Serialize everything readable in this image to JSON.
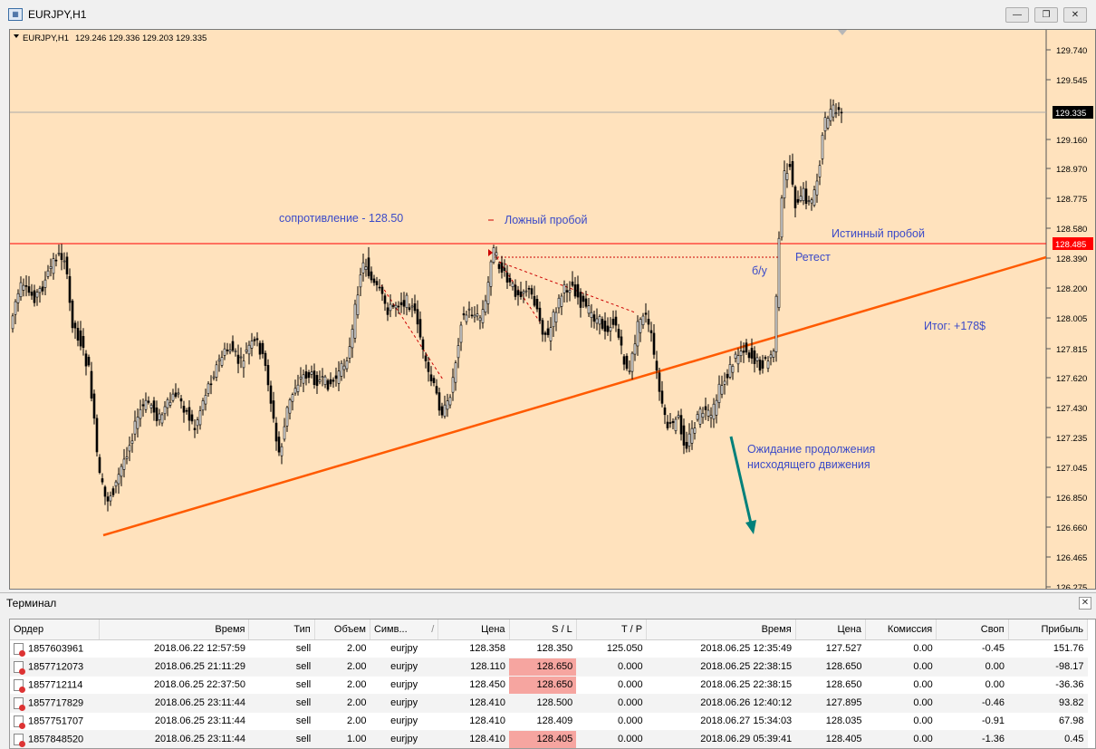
{
  "window": {
    "title": "EURJPY,H1",
    "icon": "mt4-chart-icon",
    "controls": [
      "minimize-icon",
      "restore-icon",
      "close-icon"
    ]
  },
  "chart": {
    "header_symbol": "EURJPY,H1",
    "header_ohlc": "129.246 129.336 129.203 129.335",
    "price_axis": [
      "129.740",
      "129.545",
      "129.160",
      "128.970",
      "128.775",
      "128.580",
      "128.390",
      "128.200",
      "128.005",
      "127.815",
      "127.620",
      "127.430",
      "127.235",
      "127.045",
      "126.850",
      "126.660",
      "126.465",
      "126.275"
    ],
    "current_price_label": "129.335",
    "resistance_price_label": "128.485",
    "colors": {
      "background": "#ffe2bd",
      "bull_candle": "#ffffff",
      "bear_candle": "#000000",
      "resistance_line": "#ff0000",
      "trendline": "#ff6600",
      "annotation_text": "#3b4ac8",
      "arrow": "#00807a"
    },
    "annotations": {
      "resistance": "сопротивление - 128.50",
      "false_breakout": "Ложный пробой",
      "true_breakout": "Истинный пробой",
      "retest": "Ретест",
      "breakeven": "б/у",
      "result": "Итог: +178$",
      "expect_line1": "Ожидание продолжения",
      "expect_line2": "нисходящего движения"
    }
  },
  "terminal": {
    "title": "Терминал",
    "columns": [
      "Ордер",
      "Время",
      "Тип",
      "Объем",
      "Симв...",
      "Цена",
      "S / L",
      "T / P",
      "Время",
      "Цена",
      "Комиссия",
      "Своп",
      "Прибыль"
    ],
    "sort_indicator": "/",
    "rows": [
      {
        "order": "1857603961",
        "open_time": "2018.06.22 12:57:59",
        "type": "sell",
        "volume": "2.00",
        "symbol": "eurjpy",
        "open_price": "128.358",
        "sl": "128.350",
        "tp": "125.050",
        "close_time": "2018.06.25 12:35:49",
        "close_price": "127.527",
        "commission": "0.00",
        "swap": "-0.45",
        "profit": "151.76",
        "sl_hit": false
      },
      {
        "order": "1857712073",
        "open_time": "2018.06.25 21:11:29",
        "type": "sell",
        "volume": "2.00",
        "symbol": "eurjpy",
        "open_price": "128.110",
        "sl": "128.650",
        "tp": "0.000",
        "close_time": "2018.06.25 22:38:15",
        "close_price": "128.650",
        "commission": "0.00",
        "swap": "0.00",
        "profit": "-98.17",
        "sl_hit": true
      },
      {
        "order": "1857712114",
        "open_time": "2018.06.25 22:37:50",
        "type": "sell",
        "volume": "2.00",
        "symbol": "eurjpy",
        "open_price": "128.450",
        "sl": "128.650",
        "tp": "0.000",
        "close_time": "2018.06.25 22:38:15",
        "close_price": "128.650",
        "commission": "0.00",
        "swap": "0.00",
        "profit": "-36.36",
        "sl_hit": true
      },
      {
        "order": "1857717829",
        "open_time": "2018.06.25 23:11:44",
        "type": "sell",
        "volume": "2.00",
        "symbol": "eurjpy",
        "open_price": "128.410",
        "sl": "128.500",
        "tp": "0.000",
        "close_time": "2018.06.26 12:40:12",
        "close_price": "127.895",
        "commission": "0.00",
        "swap": "-0.46",
        "profit": "93.82",
        "sl_hit": false
      },
      {
        "order": "1857751707",
        "open_time": "2018.06.25 23:11:44",
        "type": "sell",
        "volume": "2.00",
        "symbol": "eurjpy",
        "open_price": "128.410",
        "sl": "128.409",
        "tp": "0.000",
        "close_time": "2018.06.27 15:34:03",
        "close_price": "128.035",
        "commission": "0.00",
        "swap": "-0.91",
        "profit": "67.98",
        "sl_hit": false
      },
      {
        "order": "1857848520",
        "open_time": "2018.06.25 23:11:44",
        "type": "sell",
        "volume": "1.00",
        "symbol": "eurjpy",
        "open_price": "128.410",
        "sl": "128.405",
        "tp": "0.000",
        "close_time": "2018.06.29 05:39:41",
        "close_price": "128.405",
        "commission": "0.00",
        "swap": "-1.36",
        "profit": "0.45",
        "sl_hit": true
      }
    ]
  }
}
